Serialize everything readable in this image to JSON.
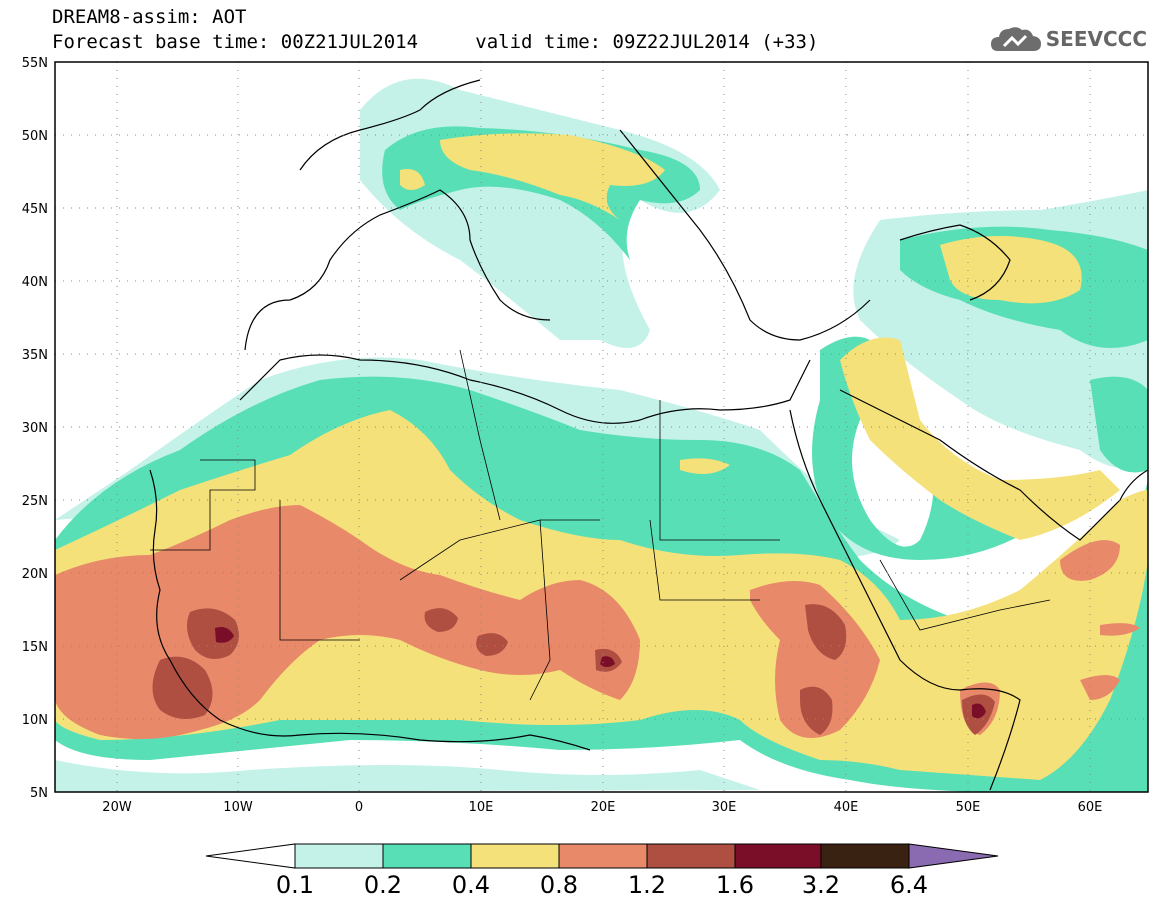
{
  "title": {
    "line1": "DREAM8-assim: AOT",
    "base_label": "Forecast base time: 00Z21JUL2014",
    "valid_label": "valid time: 09Z22JUL2014 (+33)"
  },
  "logo": {
    "text": "SEEVCCC",
    "icon": "cloud-icon"
  },
  "axes": {
    "lat_ticks": [
      "55N",
      "50N",
      "45N",
      "40N",
      "35N",
      "30N",
      "25N",
      "20N",
      "15N",
      "10N",
      "5N"
    ],
    "lon_ticks": [
      "20W",
      "10W",
      "0",
      "10E",
      "20E",
      "30E",
      "40E",
      "50E",
      "60E"
    ],
    "lon_range": [
      -25,
      65
    ],
    "lat_range": [
      5,
      55
    ]
  },
  "colorbar": {
    "labels": [
      "0.1",
      "0.2",
      "0.4",
      "0.8",
      "1.2",
      "1.6",
      "3.2",
      "6.4"
    ],
    "colors": [
      "#ffffff",
      "#c4f2e9",
      "#59dfb5",
      "#f5e17a",
      "#e8896a",
      "#ae4f42",
      "#7a0d27",
      "#3a2213",
      "#8a6ab0"
    ]
  }
}
